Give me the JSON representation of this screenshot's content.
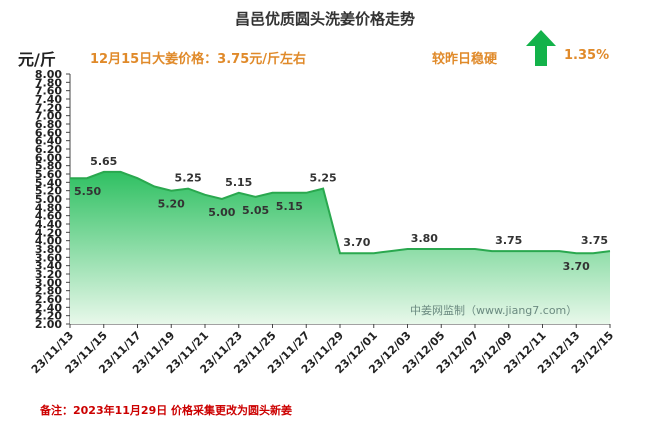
{
  "title": "昌邑优质圆头洗姜价格走势",
  "unit_label": "元/斤",
  "headline": "12月15日大姜价格：3.75元/斤左右",
  "status_text": "较昨日稳硬",
  "change_text": "1.35%",
  "watermark": "中姜网监制（www.jiang7.com）",
  "note": "备注：2023年11月29日 价格采集更改为圆头新姜",
  "colors": {
    "fill_top": "#2fc062",
    "fill_bottom": "#e8f8ea",
    "line": "#2aa84f",
    "arrow": "#13b24a",
    "accent": "#e08a2a",
    "note": "#cc0000"
  },
  "chart_data": {
    "type": "area",
    "title": "昌邑优质圆头洗姜价格走势",
    "ylabel": "元/斤",
    "ylim": [
      2.0,
      8.0
    ],
    "ytick_step": 0.2,
    "grid": false,
    "x_tick_labels": [
      "23/11/13",
      "23/11/15",
      "23/11/17",
      "23/11/19",
      "23/11/21",
      "23/11/23",
      "23/11/25",
      "23/11/27",
      "23/11/29",
      "23/12/01",
      "23/12/03",
      "23/12/05",
      "23/12/07",
      "23/12/09",
      "23/12/11",
      "23/12/13",
      "23/12/15"
    ],
    "x_start": "23/11/13",
    "x_end": "23/12/15",
    "series": [
      {
        "values": [
          [
            "23/11/13",
            5.5
          ],
          [
            "23/11/14",
            5.5
          ],
          [
            "23/11/15",
            5.65
          ],
          [
            "23/11/16",
            5.65
          ],
          [
            "23/11/17",
            5.5
          ],
          [
            "23/11/18",
            5.3
          ],
          [
            "23/11/19",
            5.2
          ],
          [
            "23/11/20",
            5.25
          ],
          [
            "23/11/21",
            5.1
          ],
          [
            "23/11/22",
            5.0
          ],
          [
            "23/11/23",
            5.15
          ],
          [
            "23/11/24",
            5.05
          ],
          [
            "23/11/25",
            5.15
          ],
          [
            "23/11/26",
            5.15
          ],
          [
            "23/11/27",
            5.15
          ],
          [
            "23/11/28",
            5.25
          ],
          [
            "23/11/29",
            3.7
          ],
          [
            "23/11/30",
            3.7
          ],
          [
            "23/12/01",
            3.7
          ],
          [
            "23/12/02",
            3.75
          ],
          [
            "23/12/03",
            3.8
          ],
          [
            "23/12/04",
            3.8
          ],
          [
            "23/12/05",
            3.8
          ],
          [
            "23/12/06",
            3.8
          ],
          [
            "23/12/07",
            3.8
          ],
          [
            "23/12/08",
            3.75
          ],
          [
            "23/12/09",
            3.75
          ],
          [
            "23/12/10",
            3.75
          ],
          [
            "23/12/11",
            3.75
          ],
          [
            "23/12/12",
            3.75
          ],
          [
            "23/12/13",
            3.7
          ],
          [
            "23/12/14",
            3.7
          ],
          [
            "23/12/15",
            3.75
          ]
        ]
      }
    ],
    "annotations": [
      {
        "x": "23/11/13",
        "y": 5.5,
        "text": "5.50",
        "position": "below"
      },
      {
        "x": "23/11/15",
        "y": 5.65,
        "text": "5.65",
        "position": "above"
      },
      {
        "x": "23/11/19",
        "y": 5.2,
        "text": "5.20",
        "position": "below"
      },
      {
        "x": "23/11/20",
        "y": 5.25,
        "text": "5.25",
        "position": "above"
      },
      {
        "x": "23/11/22",
        "y": 5.0,
        "text": "5.00",
        "position": "below"
      },
      {
        "x": "23/11/23",
        "y": 5.15,
        "text": "5.15",
        "position": "above"
      },
      {
        "x": "23/11/24",
        "y": 5.05,
        "text": "5.05",
        "position": "below"
      },
      {
        "x": "23/11/26",
        "y": 5.15,
        "text": "5.15",
        "position": "below"
      },
      {
        "x": "23/11/28",
        "y": 5.25,
        "text": "5.25",
        "position": "above"
      },
      {
        "x": "23/11/30",
        "y": 3.7,
        "text": "3.70",
        "position": "above"
      },
      {
        "x": "23/12/04",
        "y": 3.8,
        "text": "3.80",
        "position": "above"
      },
      {
        "x": "23/12/09",
        "y": 3.75,
        "text": "3.75",
        "position": "above"
      },
      {
        "x": "23/12/13",
        "y": 3.7,
        "text": "3.70",
        "position": "below"
      },
      {
        "x": "23/12/15",
        "y": 3.75,
        "text": "3.75",
        "position": "above"
      }
    ]
  }
}
